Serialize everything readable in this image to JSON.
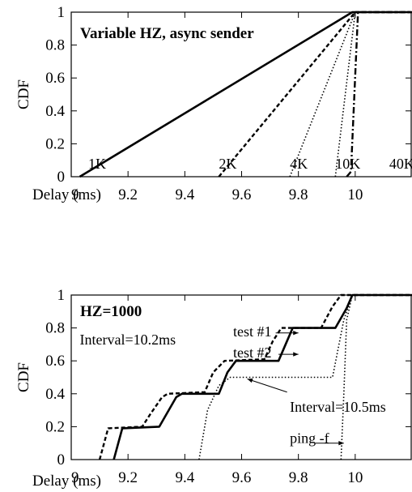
{
  "chart_data": [
    {
      "type": "line",
      "title": "Variable HZ, async sender",
      "xlabel": "Delay (ms)",
      "ylabel": "CDF",
      "xlim": [
        9,
        10.2
      ],
      "ylim": [
        0,
        1
      ],
      "xticks": [
        "9",
        "9.2",
        "9.4",
        "9.6",
        "9.8",
        "10"
      ],
      "yticks": [
        "0",
        "0.2",
        "0.4",
        "0.6",
        "0.8",
        "1"
      ],
      "grid": false,
      "series": [
        {
          "name": "1K",
          "style": "solid",
          "points": [
            [
              9.03,
              0
            ],
            [
              9.99,
              1
            ],
            [
              10.2,
              1
            ]
          ]
        },
        {
          "name": "2K",
          "style": "dashed",
          "points": [
            [
              9.52,
              0
            ],
            [
              10.0,
              1
            ],
            [
              10.2,
              1
            ]
          ]
        },
        {
          "name": "4K",
          "style": "dotted",
          "points": [
            [
              9.77,
              0
            ],
            [
              10.0,
              1
            ],
            [
              10.2,
              1
            ]
          ]
        },
        {
          "name": "10K",
          "style": "dotted",
          "points": [
            [
              9.93,
              0
            ],
            [
              10.0,
              1
            ],
            [
              10.2,
              1
            ]
          ]
        },
        {
          "name": "40K",
          "style": "dashdot",
          "points": [
            [
              9.97,
              0
            ],
            [
              9.985,
              0.03
            ],
            [
              10.01,
              1
            ],
            [
              10.2,
              1
            ]
          ]
        }
      ],
      "annotations": [
        {
          "text": "1K",
          "x": 9.06,
          "y": 0.05
        },
        {
          "text": "2K",
          "x": 9.52,
          "y": 0.05
        },
        {
          "text": "4K",
          "x": 9.77,
          "y": 0.05
        },
        {
          "text": "10K",
          "x": 9.93,
          "y": 0.05
        },
        {
          "text": "40K",
          "x": 10.12,
          "y": 0.05
        }
      ]
    },
    {
      "type": "line",
      "title": "HZ=1000",
      "xlabel": "Delay (ms)",
      "ylabel": "CDF",
      "xlim": [
        9,
        10.2
      ],
      "ylim": [
        0,
        1
      ],
      "xticks": [
        "9",
        "9.2",
        "9.4",
        "9.6",
        "9.8",
        "10"
      ],
      "yticks": [
        "0",
        "0.2",
        "0.4",
        "0.6",
        "0.8",
        "1"
      ],
      "grid": false,
      "series": [
        {
          "name": "test #1",
          "style": "solid",
          "points": [
            [
              9.15,
              0
            ],
            [
              9.18,
              0.19
            ],
            [
              9.31,
              0.2
            ],
            [
              9.34,
              0.29
            ],
            [
              9.37,
              0.38
            ],
            [
              9.39,
              0.4
            ],
            [
              9.52,
              0.4
            ],
            [
              9.55,
              0.53
            ],
            [
              9.58,
              0.6
            ],
            [
              9.73,
              0.6
            ],
            [
              9.76,
              0.72
            ],
            [
              9.78,
              0.8
            ],
            [
              9.93,
              0.8
            ],
            [
              9.97,
              0.92
            ],
            [
              9.99,
              1
            ],
            [
              10.2,
              1
            ]
          ]
        },
        {
          "name": "test #2",
          "style": "dashed",
          "points": [
            [
              9.1,
              0
            ],
            [
              9.13,
              0.19
            ],
            [
              9.25,
              0.2
            ],
            [
              9.28,
              0.28
            ],
            [
              9.32,
              0.38
            ],
            [
              9.34,
              0.4
            ],
            [
              9.47,
              0.41
            ],
            [
              9.5,
              0.53
            ],
            [
              9.54,
              0.6
            ],
            [
              9.68,
              0.61
            ],
            [
              9.71,
              0.72
            ],
            [
              9.74,
              0.8
            ],
            [
              9.88,
              0.8
            ],
            [
              9.92,
              0.93
            ],
            [
              9.95,
              1
            ],
            [
              10.2,
              1
            ]
          ]
        },
        {
          "name": "Interval=10.5ms",
          "style": "dotted",
          "points": [
            [
              9.45,
              0
            ],
            [
              9.48,
              0.3
            ],
            [
              9.52,
              0.45
            ],
            [
              9.56,
              0.5
            ],
            [
              9.92,
              0.5
            ],
            [
              9.96,
              0.85
            ],
            [
              9.99,
              1
            ],
            [
              10.2,
              1
            ]
          ]
        },
        {
          "name": "ping -f",
          "style": "dotted",
          "points": [
            [
              9.95,
              0
            ],
            [
              9.96,
              0.4
            ],
            [
              9.97,
              0.85
            ],
            [
              9.99,
              1
            ],
            [
              10.2,
              1
            ]
          ]
        }
      ],
      "annotations": [
        {
          "text": "Interval=10.2ms",
          "x": 9.03,
          "y": 0.7
        },
        {
          "text": "test #1",
          "x": 9.57,
          "y": 0.75
        },
        {
          "text": "test #2",
          "x": 9.57,
          "y": 0.62
        },
        {
          "text": "Interval=10.5ms",
          "x": 9.77,
          "y": 0.29
        },
        {
          "text": "ping -f",
          "x": 9.77,
          "y": 0.1
        }
      ]
    }
  ]
}
